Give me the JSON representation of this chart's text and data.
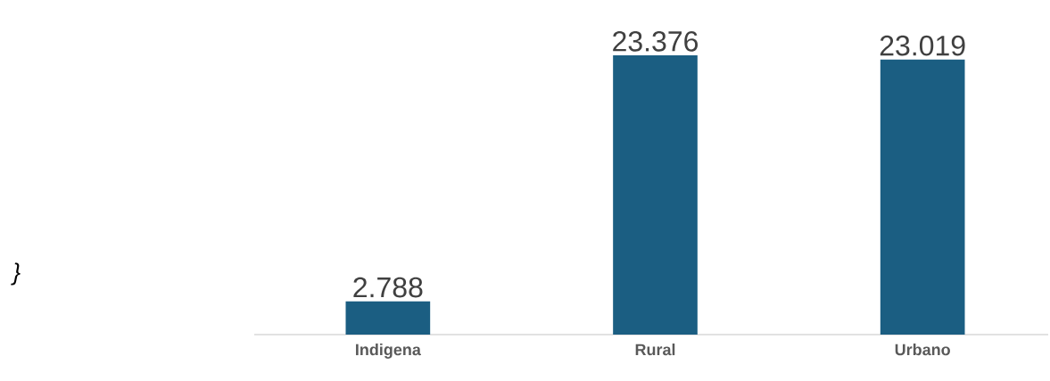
{
  "chart_data": {
    "type": "bar",
    "categories": [
      "Indigena",
      "Rural",
      "Urbano"
    ],
    "values": [
      2788,
      23376,
      23019
    ],
    "value_labels": [
      "2.788",
      "23.376",
      "23.019"
    ],
    "color": "#1b5e82",
    "annotations": [
      "}"
    ]
  }
}
